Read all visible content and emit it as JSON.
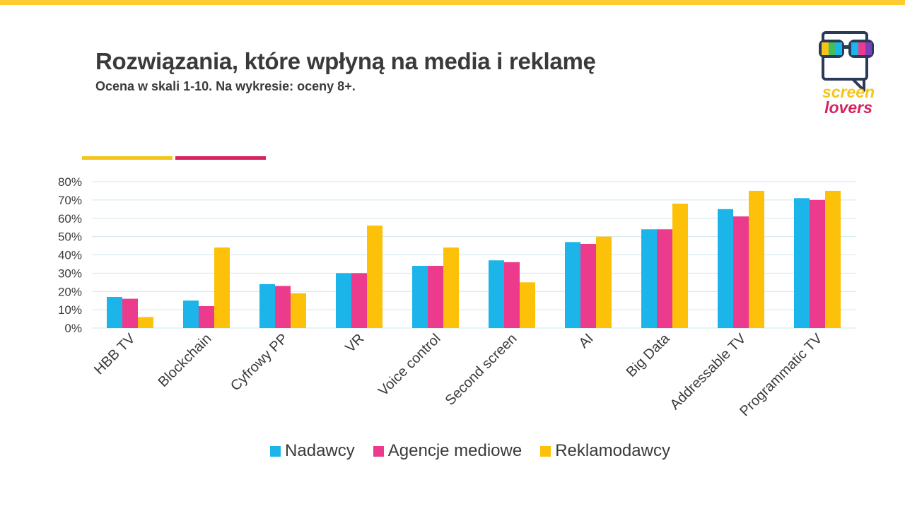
{
  "header": {
    "title": "Rozwiązania, które wpłyną na media i reklamę",
    "subtitle": "Ocena w skali 1-10. Na wykresie: oceny 8+."
  },
  "logo": {
    "line1": "screen",
    "line2": "lovers"
  },
  "colors": {
    "top_bar": "#fecc2f",
    "accent_yellow": "#f5c518",
    "accent_magenta": "#d6225f",
    "nadawcy": "#1cb5ea",
    "agencje": "#ec3b8c",
    "reklamodawcy": "#fec109",
    "logo_yellow": "#f5c518",
    "logo_magenta": "#d6225f",
    "logo_dark": "#2b3a56"
  },
  "chart_data": {
    "type": "bar",
    "categories": [
      "HBB TV",
      "Blockchain",
      "Cyfrowy PP",
      "VR",
      "Voice control",
      "Second screen",
      "AI",
      "Big Data",
      "Addressable TV",
      "Programmatic TV"
    ],
    "series": [
      {
        "name": "Nadawcy",
        "values": [
          17,
          15,
          24,
          30,
          34,
          37,
          47,
          54,
          65,
          71
        ]
      },
      {
        "name": "Agencje mediowe",
        "values": [
          16,
          12,
          23,
          30,
          34,
          36,
          46,
          54,
          61,
          70
        ]
      },
      {
        "name": "Reklamodawcy",
        "values": [
          6,
          44,
          19,
          56,
          44,
          25,
          50,
          68,
          75,
          75
        ]
      }
    ],
    "yticks": [
      "0%",
      "10%",
      "20%",
      "30%",
      "40%",
      "50%",
      "60%",
      "70%",
      "80%"
    ],
    "ylim": [
      0,
      80
    ],
    "grid": true,
    "legend": "bottom"
  }
}
